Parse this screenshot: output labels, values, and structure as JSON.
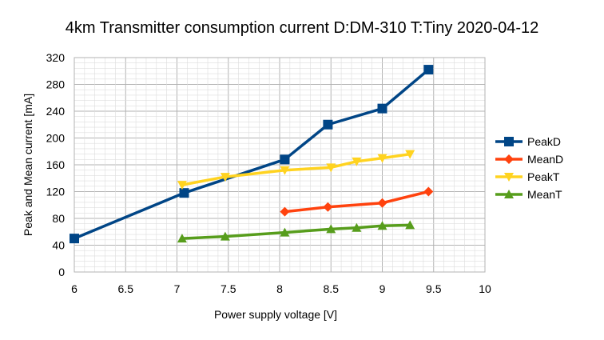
{
  "chart_data": {
    "type": "line",
    "title": "4km Transmitter consumption current D:DM-310 T:Tiny 2020-04-12",
    "xlabel": "Power supply voltage [V]",
    "ylabel": "Peak and Mean current [mA]",
    "xlim": [
      6,
      10
    ],
    "ylim": [
      0,
      320
    ],
    "x_ticks": [
      "6",
      "6.5",
      "7",
      "7.5",
      "8",
      "8.5",
      "9",
      "9.5",
      "10"
    ],
    "y_ticks": [
      "0",
      "40",
      "80",
      "120",
      "160",
      "200",
      "240",
      "280",
      "320"
    ],
    "x_tick_values": [
      6,
      6.5,
      7,
      7.5,
      8,
      8.5,
      9,
      9.5,
      10
    ],
    "y_tick_values": [
      0,
      40,
      80,
      120,
      160,
      200,
      240,
      280,
      320
    ],
    "grid": true,
    "legend_position": "right",
    "series": [
      {
        "name": "PeakD",
        "color": "#004586",
        "marker": "square",
        "points": [
          [
            6.0,
            50
          ],
          [
            7.07,
            118
          ],
          [
            8.05,
            168
          ],
          [
            8.47,
            220
          ],
          [
            9.0,
            244
          ],
          [
            9.45,
            302
          ]
        ]
      },
      {
        "name": "MeanD",
        "color": "#ff420e",
        "marker": "diamond",
        "points": [
          [
            8.05,
            90
          ],
          [
            8.47,
            97
          ],
          [
            9.0,
            103
          ],
          [
            9.45,
            120
          ]
        ]
      },
      {
        "name": "PeakT",
        "color": "#ffd320",
        "marker": "triangle-down",
        "points": [
          [
            7.05,
            130
          ],
          [
            7.47,
            142
          ],
          [
            8.05,
            152
          ],
          [
            8.5,
            156
          ],
          [
            8.75,
            165
          ],
          [
            9.0,
            170
          ],
          [
            9.27,
            176
          ]
        ]
      },
      {
        "name": "MeanT",
        "color": "#579d1c",
        "marker": "triangle-up",
        "points": [
          [
            7.05,
            50
          ],
          [
            7.47,
            53
          ],
          [
            8.05,
            59
          ],
          [
            8.5,
            64
          ],
          [
            8.75,
            66
          ],
          [
            9.0,
            69
          ],
          [
            9.27,
            70
          ]
        ]
      }
    ]
  }
}
